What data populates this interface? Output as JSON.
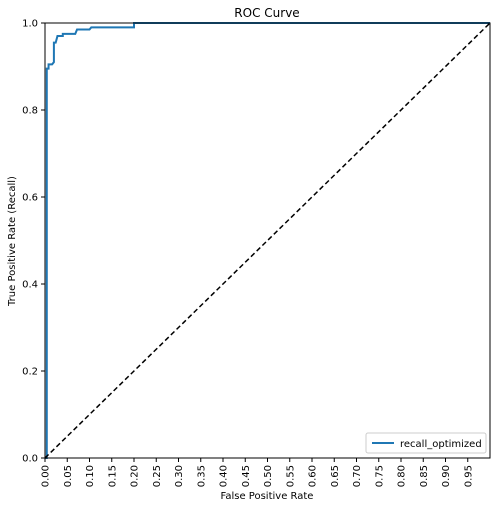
{
  "chart_data": {
    "type": "line",
    "title": "ROC Curve",
    "xlabel": "False Positive Rate",
    "ylabel": "True Positive Rate (Recall)",
    "xlim": [
      0,
      1
    ],
    "ylim": [
      0,
      1
    ],
    "x_ticks": [
      "0.00",
      "0.05",
      "0.10",
      "0.15",
      "0.20",
      "0.25",
      "0.30",
      "0.35",
      "0.40",
      "0.45",
      "0.50",
      "0.55",
      "0.60",
      "0.65",
      "0.70",
      "0.75",
      "0.80",
      "0.85",
      "0.90",
      "0.95"
    ],
    "y_ticks": [
      "0.0",
      "0.2",
      "0.4",
      "0.6",
      "0.8",
      "1.0"
    ],
    "grid": false,
    "legend_position": "lower-right",
    "series": [
      {
        "name": "recall_optimized",
        "color": "#1f77b4",
        "style": "solid",
        "x": [
          0.0,
          0.0,
          0.004,
          0.004,
          0.008,
          0.008,
          0.012,
          0.016,
          0.02,
          0.02,
          0.024,
          0.028,
          0.032,
          0.04,
          0.04,
          0.068,
          0.072,
          0.1,
          0.104,
          0.2,
          0.2,
          1.0
        ],
        "y": [
          0.0,
          0.0,
          0.0,
          0.895,
          0.895,
          0.905,
          0.905,
          0.905,
          0.91,
          0.955,
          0.955,
          0.97,
          0.97,
          0.97,
          0.975,
          0.975,
          0.985,
          0.985,
          0.99,
          0.99,
          1.0,
          1.0
        ]
      },
      {
        "color": "#000000",
        "style": "dashed",
        "x": [
          0,
          1
        ],
        "y": [
          0,
          1
        ]
      }
    ]
  }
}
